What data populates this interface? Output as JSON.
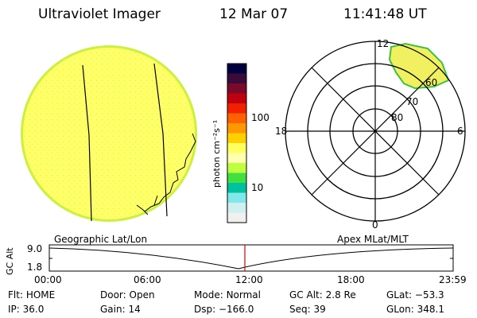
{
  "header": {
    "title": "Ultraviolet Imager",
    "date": "12 Mar 07",
    "time": "11:41:48 UT"
  },
  "colorbar": {
    "unit_label": "photon cm⁻²s⁻¹",
    "tick_labels": [
      "100",
      "10"
    ],
    "colors": [
      "#000040",
      "#3a0a3a",
      "#7a0a2a",
      "#c00010",
      "#f02000",
      "#ff6000",
      "#ff9800",
      "#ffd000",
      "#ffff60",
      "#ffffb0",
      "#c0ff40",
      "#40e040",
      "#00c0a0",
      "#80e8e8",
      "#d0f0f0",
      "#f0f0f0"
    ]
  },
  "polar_plot": {
    "mlt_labels": [
      "12",
      "18",
      "6",
      "0"
    ],
    "lat_labels": [
      "60",
      "70",
      "80"
    ]
  },
  "map_labels": {
    "left": "Geographic Lat/Lon",
    "right": "Apex MLat/MLT"
  },
  "altitude_plot": {
    "ylabel": "GC Alt",
    "yticks": [
      "9.0",
      "1.8"
    ],
    "xticks": [
      "00:00",
      "06:00",
      "12:00",
      "18:00",
      "23:59"
    ],
    "marker_time": "11:41"
  },
  "info": {
    "row1": [
      {
        "label": "Flt:",
        "value": "HOME"
      },
      {
        "label": "Door:",
        "value": "Open"
      },
      {
        "label": "Mode:",
        "value": "Normal"
      },
      {
        "label": "GC Alt:",
        "value": "2.8 Re"
      },
      {
        "label": "GLat:",
        "value": "−53.3"
      }
    ],
    "row2": [
      {
        "label": "IP:",
        "value": "36.0"
      },
      {
        "label": "Gain:",
        "value": "14"
      },
      {
        "label": "Dsp:",
        "value": "−166.0"
      },
      {
        "label": "Seq:",
        "value": "39"
      },
      {
        "label": "GLon:",
        "value": "348.1"
      }
    ]
  }
}
